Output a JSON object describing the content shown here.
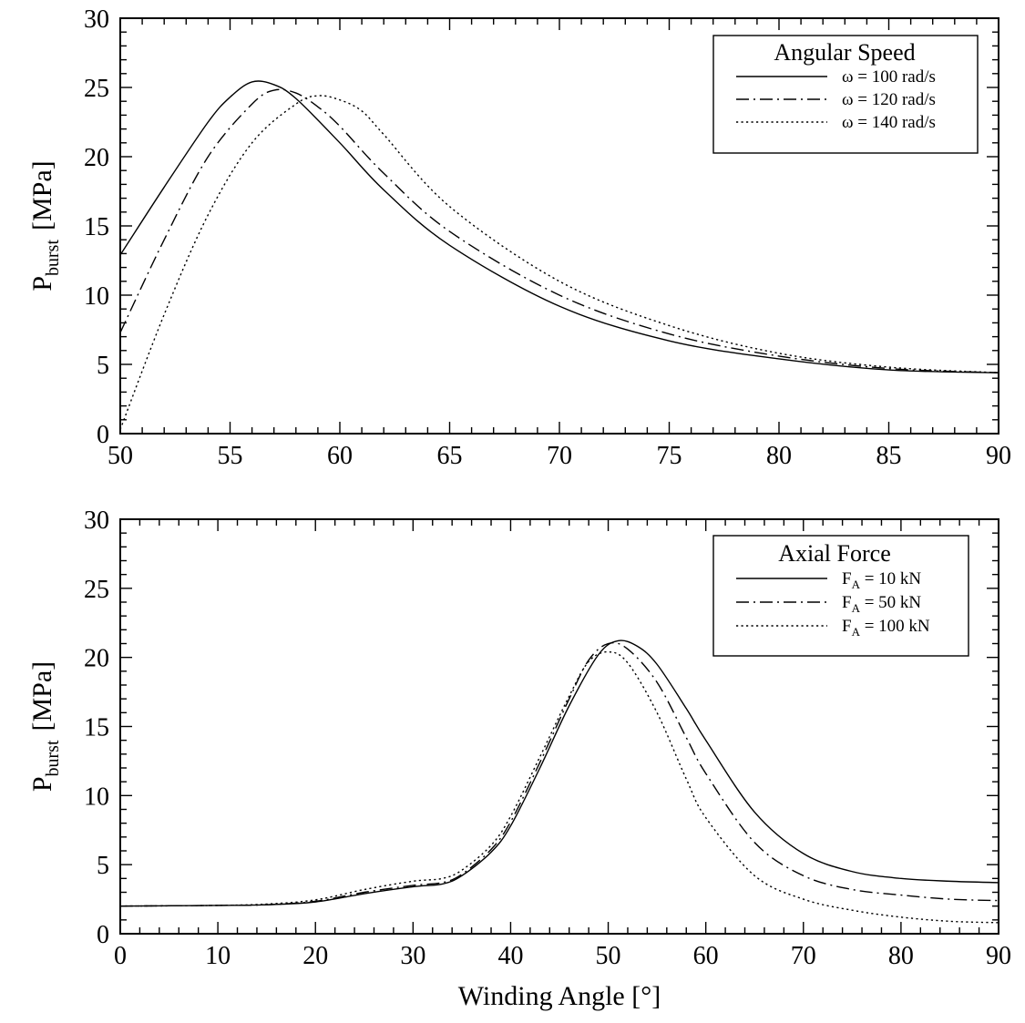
{
  "chart_data": [
    {
      "type": "line",
      "xlabel": "",
      "ylabel": {
        "base": "P",
        "sub": "burst",
        "unit": "[MPa]"
      },
      "xlim": [
        50,
        90
      ],
      "ylim": [
        0,
        30
      ],
      "xticks": [
        50,
        55,
        60,
        65,
        70,
        75,
        80,
        85,
        90
      ],
      "yticks": [
        0,
        5,
        10,
        15,
        20,
        25,
        30
      ],
      "legend": {
        "title": "Angular Speed",
        "position": "top-right",
        "entries": [
          {
            "main": "ω = 100 rad/s",
            "sub": "",
            "tail": ""
          },
          {
            "main": "ω = 120 rad/s",
            "sub": "",
            "tail": ""
          },
          {
            "main": "ω = 140 rad/s",
            "sub": "",
            "tail": ""
          }
        ]
      },
      "series": [
        {
          "style": "solid",
          "x": [
            50,
            52,
            54,
            55,
            56,
            57,
            58,
            60,
            62,
            65,
            70,
            75,
            80,
            85,
            90
          ],
          "y": [
            12.9,
            17.8,
            22.5,
            24.3,
            25.4,
            25.2,
            24.2,
            21.0,
            17.6,
            13.6,
            9.2,
            6.7,
            5.4,
            4.6,
            4.4
          ]
        },
        {
          "style": "dashdot",
          "x": [
            50,
            52,
            54,
            56,
            57,
            58,
            59,
            60,
            62,
            65,
            70,
            75,
            80,
            85,
            90
          ],
          "y": [
            7.3,
            14.0,
            20.0,
            23.8,
            24.8,
            24.6,
            23.6,
            22.2,
            18.8,
            14.6,
            10.0,
            7.2,
            5.6,
            4.7,
            4.4
          ]
        },
        {
          "style": "dotted",
          "x": [
            50,
            52,
            54,
            56,
            58,
            59,
            60,
            61,
            62,
            65,
            70,
            75,
            80,
            85,
            90
          ],
          "y": [
            0.3,
            8.6,
            15.8,
            21.0,
            23.8,
            24.4,
            24.1,
            23.3,
            21.6,
            16.4,
            11.0,
            7.8,
            5.8,
            4.8,
            4.4
          ]
        }
      ]
    },
    {
      "type": "line",
      "xlabel": "Winding Angle  [°]",
      "ylabel": {
        "base": "P",
        "sub": "burst",
        "unit": "[MPa]"
      },
      "xlim": [
        0,
        90
      ],
      "ylim": [
        0,
        30
      ],
      "xticks": [
        0,
        10,
        20,
        30,
        40,
        50,
        60,
        70,
        80,
        90
      ],
      "yticks": [
        0,
        5,
        10,
        15,
        20,
        25,
        30
      ],
      "legend": {
        "title": "Axial Force",
        "position": "top-right",
        "entries": [
          {
            "main": "F",
            "sub": "A",
            "tail": " = 10 kN"
          },
          {
            "main": "F",
            "sub": "A",
            "tail": " = 50 kN"
          },
          {
            "main": "F",
            "sub": "A",
            "tail": " = 100 kN"
          }
        ]
      },
      "series": [
        {
          "style": "solid",
          "x": [
            0,
            10,
            15,
            20,
            25,
            30,
            33,
            35,
            38,
            40,
            43,
            46,
            49,
            51,
            53,
            55,
            58,
            60,
            65,
            70,
            75,
            80,
            85,
            90
          ],
          "y": [
            2.0,
            2.05,
            2.1,
            2.3,
            2.9,
            3.4,
            3.6,
            4.2,
            5.9,
            7.8,
            12.0,
            16.5,
            20.2,
            21.2,
            20.8,
            19.5,
            16.3,
            14.0,
            8.8,
            5.8,
            4.5,
            4.0,
            3.8,
            3.7
          ]
        },
        {
          "style": "dashdot",
          "x": [
            0,
            10,
            15,
            20,
            25,
            30,
            33,
            35,
            38,
            40,
            43,
            46,
            48,
            50,
            52,
            55,
            58,
            60,
            65,
            70,
            75,
            80,
            85,
            90
          ],
          "y": [
            2.0,
            2.05,
            2.1,
            2.35,
            3.0,
            3.5,
            3.7,
            4.3,
            6.1,
            8.1,
            12.4,
            17.0,
            19.8,
            21.0,
            20.6,
            18.2,
            14.2,
            11.6,
            6.6,
            4.2,
            3.2,
            2.8,
            2.5,
            2.4
          ]
        },
        {
          "style": "dotted",
          "x": [
            0,
            10,
            15,
            20,
            25,
            30,
            33,
            35,
            38,
            40,
            43,
            46,
            48,
            50,
            52,
            55,
            58,
            60,
            65,
            70,
            75,
            80,
            85,
            90
          ],
          "y": [
            2.0,
            2.05,
            2.15,
            2.45,
            3.2,
            3.8,
            4.0,
            4.6,
            6.4,
            8.5,
            12.8,
            17.2,
            19.7,
            20.4,
            19.6,
            16.0,
            11.2,
            8.4,
            4.2,
            2.5,
            1.7,
            1.2,
            0.9,
            0.8
          ]
        }
      ]
    }
  ]
}
